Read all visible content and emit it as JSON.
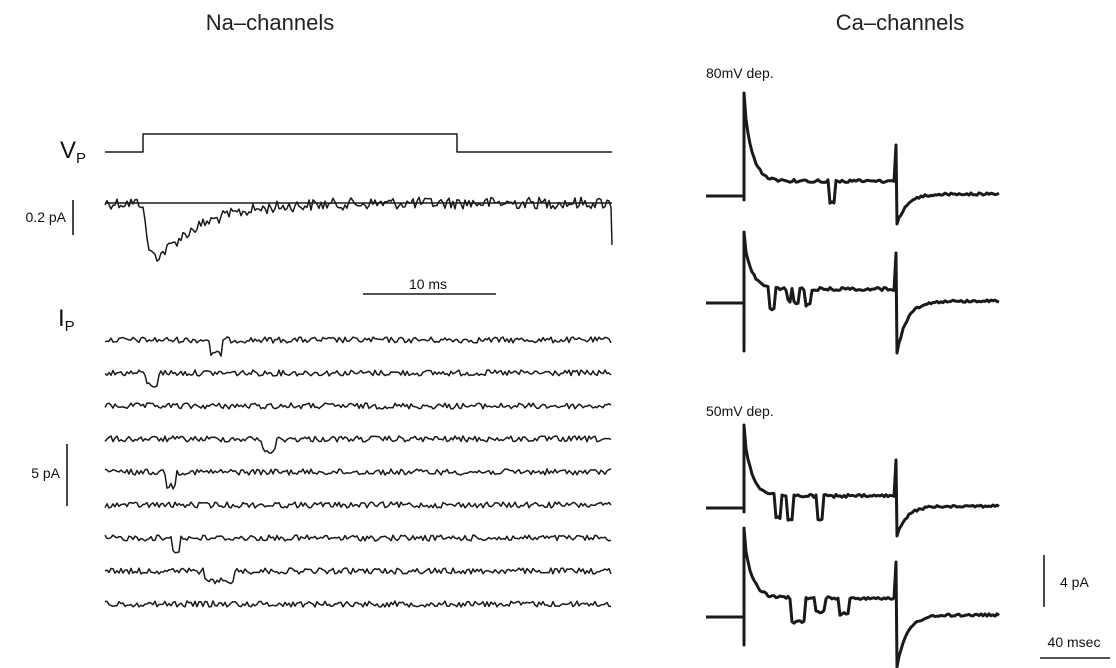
{
  "panels": {
    "na": {
      "title": "Na–channels",
      "voltage_label": "V",
      "voltage_subscript": "P",
      "avg_scale_label": "0.2 pA",
      "time_scale_label": "10 ms",
      "current_label": "I",
      "current_subscript": "P",
      "single_scale_label": "5 pA",
      "single_sweep_count": 9
    },
    "ca": {
      "title": "Ca–channels",
      "condition_1": "80mV dep.",
      "condition_2": "50mV dep.",
      "current_scale_label": "4 pA",
      "time_scale_label": "40 msec"
    }
  }
}
